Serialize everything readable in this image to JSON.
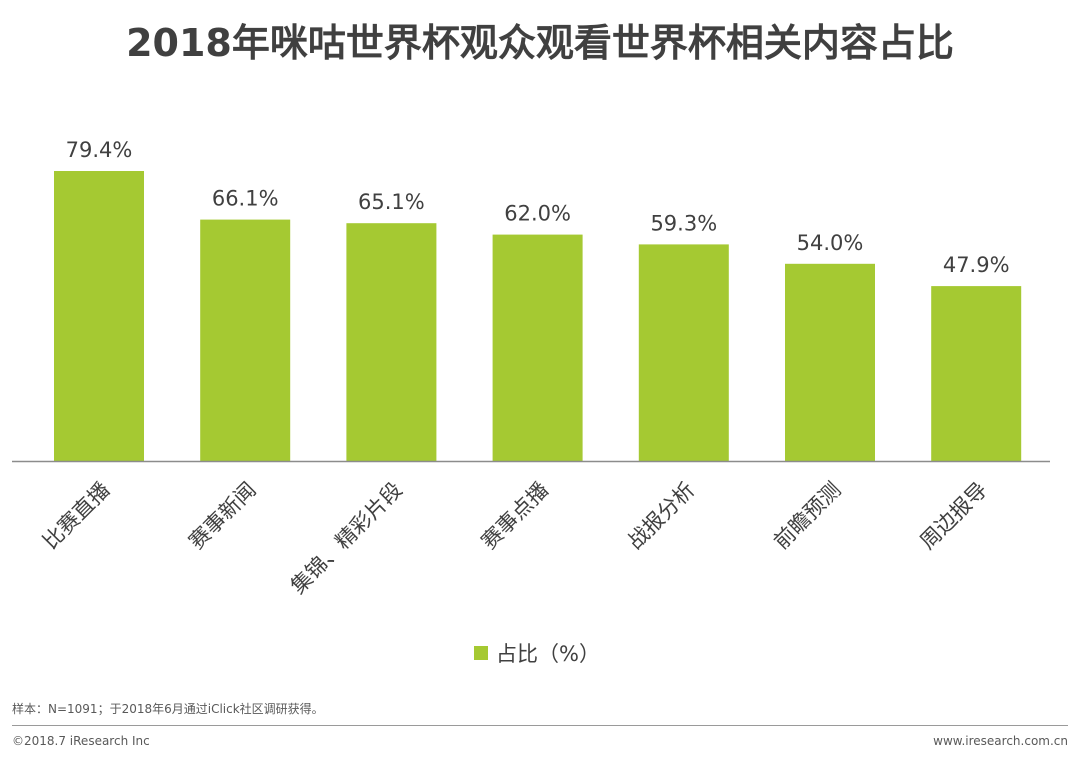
{
  "chart_data": {
    "type": "bar",
    "title": "2018年咪咕世界杯观众观看世界杯相关内容占比",
    "categories": [
      "比赛直播",
      "赛事新闻",
      "集锦、精彩片段",
      "赛事点播",
      "战报分析",
      "前瞻预测",
      "周边报导"
    ],
    "series": [
      {
        "name": "占比（%）",
        "values": [
          79.4,
          66.1,
          65.1,
          62.0,
          59.3,
          54.0,
          47.9
        ],
        "color": "#a5c932"
      }
    ],
    "value_labels": [
      "79.4%",
      "66.1%",
      "65.1%",
      "62.0%",
      "59.3%",
      "54.0%",
      "47.9%"
    ],
    "xlabel": "",
    "ylabel": "",
    "ylim": [
      0,
      100
    ],
    "grid": false,
    "legend_position": "bottom"
  },
  "legend": {
    "label": "占比（%）",
    "color": "#a5c932"
  },
  "footnote": "样本：N=1091；于2018年6月通过iClick社区调研获得。",
  "copyright": "©2018.7 iResearch Inc",
  "website": "www.iresearch.com.cn"
}
